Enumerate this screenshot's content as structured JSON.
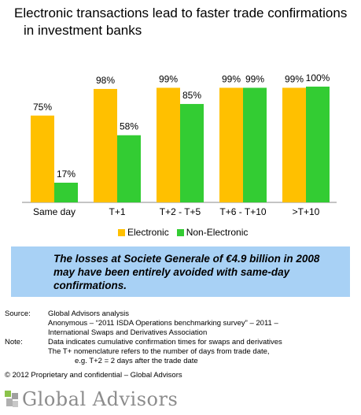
{
  "title": {
    "line1": "Electronic transactions lead to faster trade confirmations",
    "line2": "in investment banks"
  },
  "colors": {
    "electronic": "#ffc000",
    "non_electronic": "#33cc33",
    "callout_bg": "#a8d1f5",
    "logo_text": "#8c8c8c"
  },
  "chart_data": {
    "type": "bar",
    "categories": [
      "Same day",
      "T+1",
      "T+2 - T+5",
      "T+6 - T+10",
      ">T+10"
    ],
    "series": [
      {
        "name": "Electronic",
        "values": [
          75,
          98,
          99,
          99,
          99
        ],
        "labels": [
          "75%",
          "98%",
          "99%",
          "99%",
          "99%"
        ],
        "color": "#ffc000"
      },
      {
        "name": "Non-Electronic",
        "values": [
          17,
          58,
          85,
          99,
          100
        ],
        "labels": [
          "17%",
          "58%",
          "85%",
          "99%",
          "100%"
        ],
        "color": "#33cc33"
      }
    ],
    "ylim": [
      0,
      100
    ],
    "grid": false,
    "legend": "bottom"
  },
  "callout": {
    "text": "The losses at Societe Generale of €4.9 billion in 2008 may have been entirely avoided with same-day confirmations."
  },
  "notes": {
    "source_label": "Source:",
    "source_1": "Global Advisors analysis",
    "source_2a": "Anonymous – “2011 ISDA Operations benchmarking survey” – 2011 –",
    "source_2b": "International Swaps and Derivatives Association",
    "note_label": "Note:",
    "note_1": "Data indicates cumulative confirmation times for swaps and derivatives",
    "note_2a": "The T+ nomenclature refers to the number of days from trade date,",
    "note_2b": "e.g. T+2 = 2 days after the trade date"
  },
  "copyright": "© 2012 Proprietary and confidential – Global Advisors",
  "logo": {
    "text": "Global Advisors",
    "icon": "global-advisors-logo-icon"
  }
}
